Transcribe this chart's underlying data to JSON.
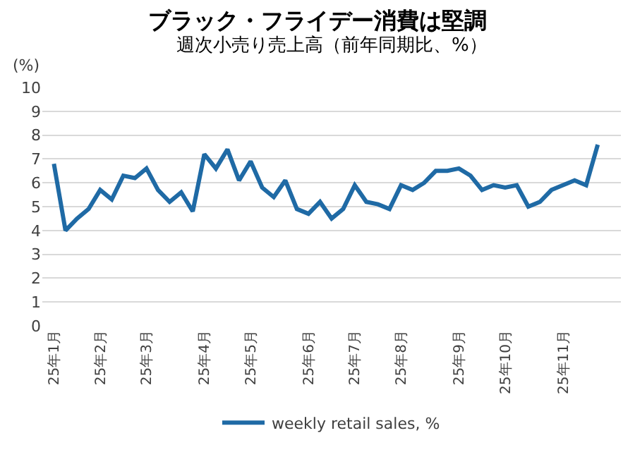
{
  "chart_data": {
    "type": "line",
    "title": "ブラック・フライデー消費は堅調",
    "subtitle": "週次小売り売上高（前年同期比、%）",
    "ylabel": "(%)",
    "categories": [
      "25年1月",
      null,
      null,
      null,
      "25年2月",
      null,
      null,
      null,
      "25年3月",
      null,
      null,
      null,
      null,
      "25年4月",
      null,
      null,
      null,
      "25年5月",
      null,
      null,
      null,
      null,
      "25年6月",
      null,
      null,
      null,
      "25年7月",
      null,
      null,
      null,
      "25年8月",
      null,
      null,
      null,
      null,
      "25年9月",
      null,
      null,
      null,
      "25年10月",
      null,
      null,
      null,
      null,
      "25年11月",
      null,
      null,
      null,
      null
    ],
    "series": [
      {
        "name": "weekly retail sales, %",
        "color": "#1f6aa5",
        "values": [
          6.8,
          4.0,
          4.5,
          4.9,
          5.7,
          5.3,
          6.3,
          6.2,
          6.6,
          5.7,
          5.2,
          5.6,
          4.8,
          7.2,
          6.6,
          7.4,
          6.1,
          6.9,
          5.8,
          5.4,
          6.1,
          4.9,
          4.7,
          5.2,
          4.5,
          4.9,
          5.9,
          5.2,
          5.1,
          4.9,
          5.9,
          5.7,
          6.0,
          6.5,
          6.5,
          6.6,
          6.3,
          5.7,
          5.9,
          5.8,
          5.9,
          5.0,
          5.2,
          5.7,
          5.9,
          6.1,
          5.9,
          7.6,
          null
        ]
      }
    ],
    "ylim": [
      0,
      10
    ],
    "yticks": [
      0,
      1,
      2,
      3,
      4,
      5,
      6,
      7,
      8,
      9,
      10
    ],
    "grid": "y",
    "legend": "bottom",
    "marker": "none",
    "line_style": "solid"
  }
}
